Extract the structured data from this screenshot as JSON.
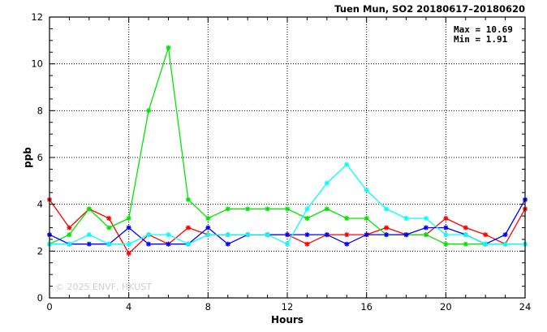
{
  "chart_data": {
    "type": "line",
    "title": "Tuen Mun, SO2 20180617–20180620",
    "xlabel": "Hours",
    "ylabel": "ppb",
    "xlim": [
      0,
      24
    ],
    "ylim": [
      0,
      12
    ],
    "xticks": [
      "0",
      "4",
      "8",
      "12",
      "16",
      "20",
      "24"
    ],
    "yticks": [
      "0",
      "2",
      "4",
      "6",
      "8",
      "10",
      "12"
    ],
    "grid": true,
    "stats": {
      "max_label": "Max = 10.69",
      "min_label": "Min =  1.91"
    },
    "watermark": "© 2025  ENVF, HKUST",
    "x": [
      0,
      1,
      2,
      3,
      4,
      5,
      6,
      7,
      8,
      9,
      10,
      11,
      12,
      13,
      14,
      15,
      16,
      17,
      18,
      19,
      20,
      21,
      22,
      23,
      24
    ],
    "series": [
      {
        "color": "#ff0000",
        "values": [
          4.2,
          3.0,
          3.8,
          3.4,
          1.9,
          2.7,
          2.3,
          3.0,
          2.7,
          2.7,
          2.7,
          2.7,
          2.7,
          2.3,
          2.7,
          2.7,
          2.7,
          3.0,
          2.7,
          2.7,
          3.4,
          3.0,
          2.7,
          2.3,
          3.8
        ]
      },
      {
        "color": "#00e600",
        "values": [
          2.3,
          2.7,
          3.8,
          3.0,
          3.4,
          8.0,
          10.69,
          4.2,
          3.4,
          3.8,
          3.8,
          3.8,
          3.8,
          3.4,
          3.8,
          3.4,
          3.4,
          2.7,
          2.7,
          2.7,
          2.3,
          2.3,
          2.3,
          2.3,
          2.3
        ]
      },
      {
        "color": "#0000ff",
        "values": [
          2.7,
          2.3,
          2.3,
          2.3,
          3.0,
          2.3,
          2.3,
          2.3,
          3.0,
          2.3,
          2.7,
          2.7,
          2.7,
          2.7,
          2.7,
          2.3,
          2.7,
          2.7,
          2.7,
          3.0,
          3.0,
          2.7,
          2.3,
          2.7,
          4.2
        ]
      },
      {
        "color": "#00ffff",
        "values": [
          2.3,
          2.3,
          2.7,
          2.3,
          2.3,
          2.7,
          2.7,
          2.3,
          2.7,
          2.7,
          2.7,
          2.7,
          2.3,
          3.8,
          4.9,
          5.7,
          4.6,
          3.8,
          3.4,
          3.4,
          2.7,
          2.7,
          2.3,
          2.3,
          2.3
        ]
      }
    ]
  }
}
